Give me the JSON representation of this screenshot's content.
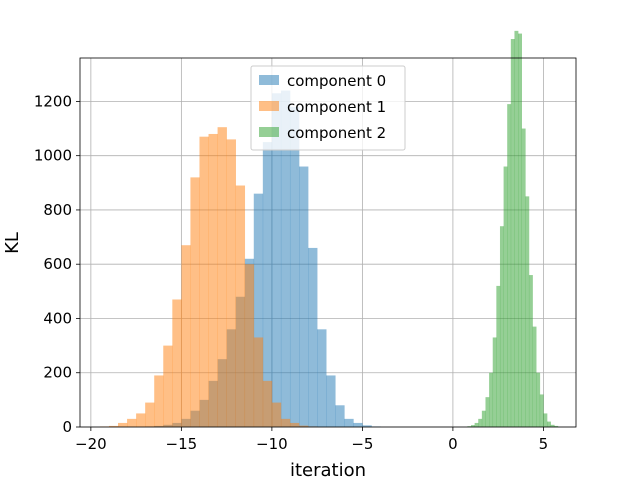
{
  "chart_data": {
    "type": "histogram",
    "title": "",
    "xlabel": "iteration",
    "ylabel": "KL",
    "xlim": [
      -20.6,
      6.8
    ],
    "ylim": [
      0,
      1360
    ],
    "xticks": [
      -20,
      -15,
      -10,
      -5,
      0,
      5
    ],
    "xtick_labels": [
      "−20",
      "−15",
      "−10",
      "−5",
      "0",
      "5"
    ],
    "yticks": [
      0,
      200,
      400,
      600,
      800,
      1000,
      1200
    ],
    "ytick_labels": [
      "0",
      "200",
      "400",
      "600",
      "800",
      "1000",
      "1200"
    ],
    "grid": true,
    "legend_position": "top-center",
    "bar_alpha": 0.5,
    "series": [
      {
        "name": "component 0",
        "color": "#1f77b4",
        "bin_start": -17.0,
        "bin_width": 0.5,
        "counts": [
          2,
          4,
          8,
          15,
          30,
          60,
          100,
          170,
          250,
          360,
          480,
          620,
          860,
          1050,
          1230,
          1240,
          1180,
          960,
          660,
          360,
          190,
          80,
          30,
          15,
          6,
          2
        ]
      },
      {
        "name": "component 1",
        "color": "#ff7f0e",
        "bin_start": -19.5,
        "bin_width": 0.5,
        "counts": [
          2,
          4,
          15,
          30,
          50,
          90,
          190,
          300,
          470,
          670,
          920,
          1070,
          1080,
          1105,
          1060,
          890,
          600,
          330,
          170,
          90,
          30,
          15,
          5,
          2
        ]
      },
      {
        "name": "component 2",
        "color": "#2ca02c",
        "bin_start": 0.8,
        "bin_width": 0.2,
        "counts": [
          3,
          7,
          15,
          30,
          60,
          110,
          200,
          330,
          520,
          740,
          960,
          1190,
          1430,
          1460,
          1450,
          1100,
          850,
          560,
          370,
          200,
          120,
          50,
          20,
          8,
          4
        ]
      }
    ]
  }
}
